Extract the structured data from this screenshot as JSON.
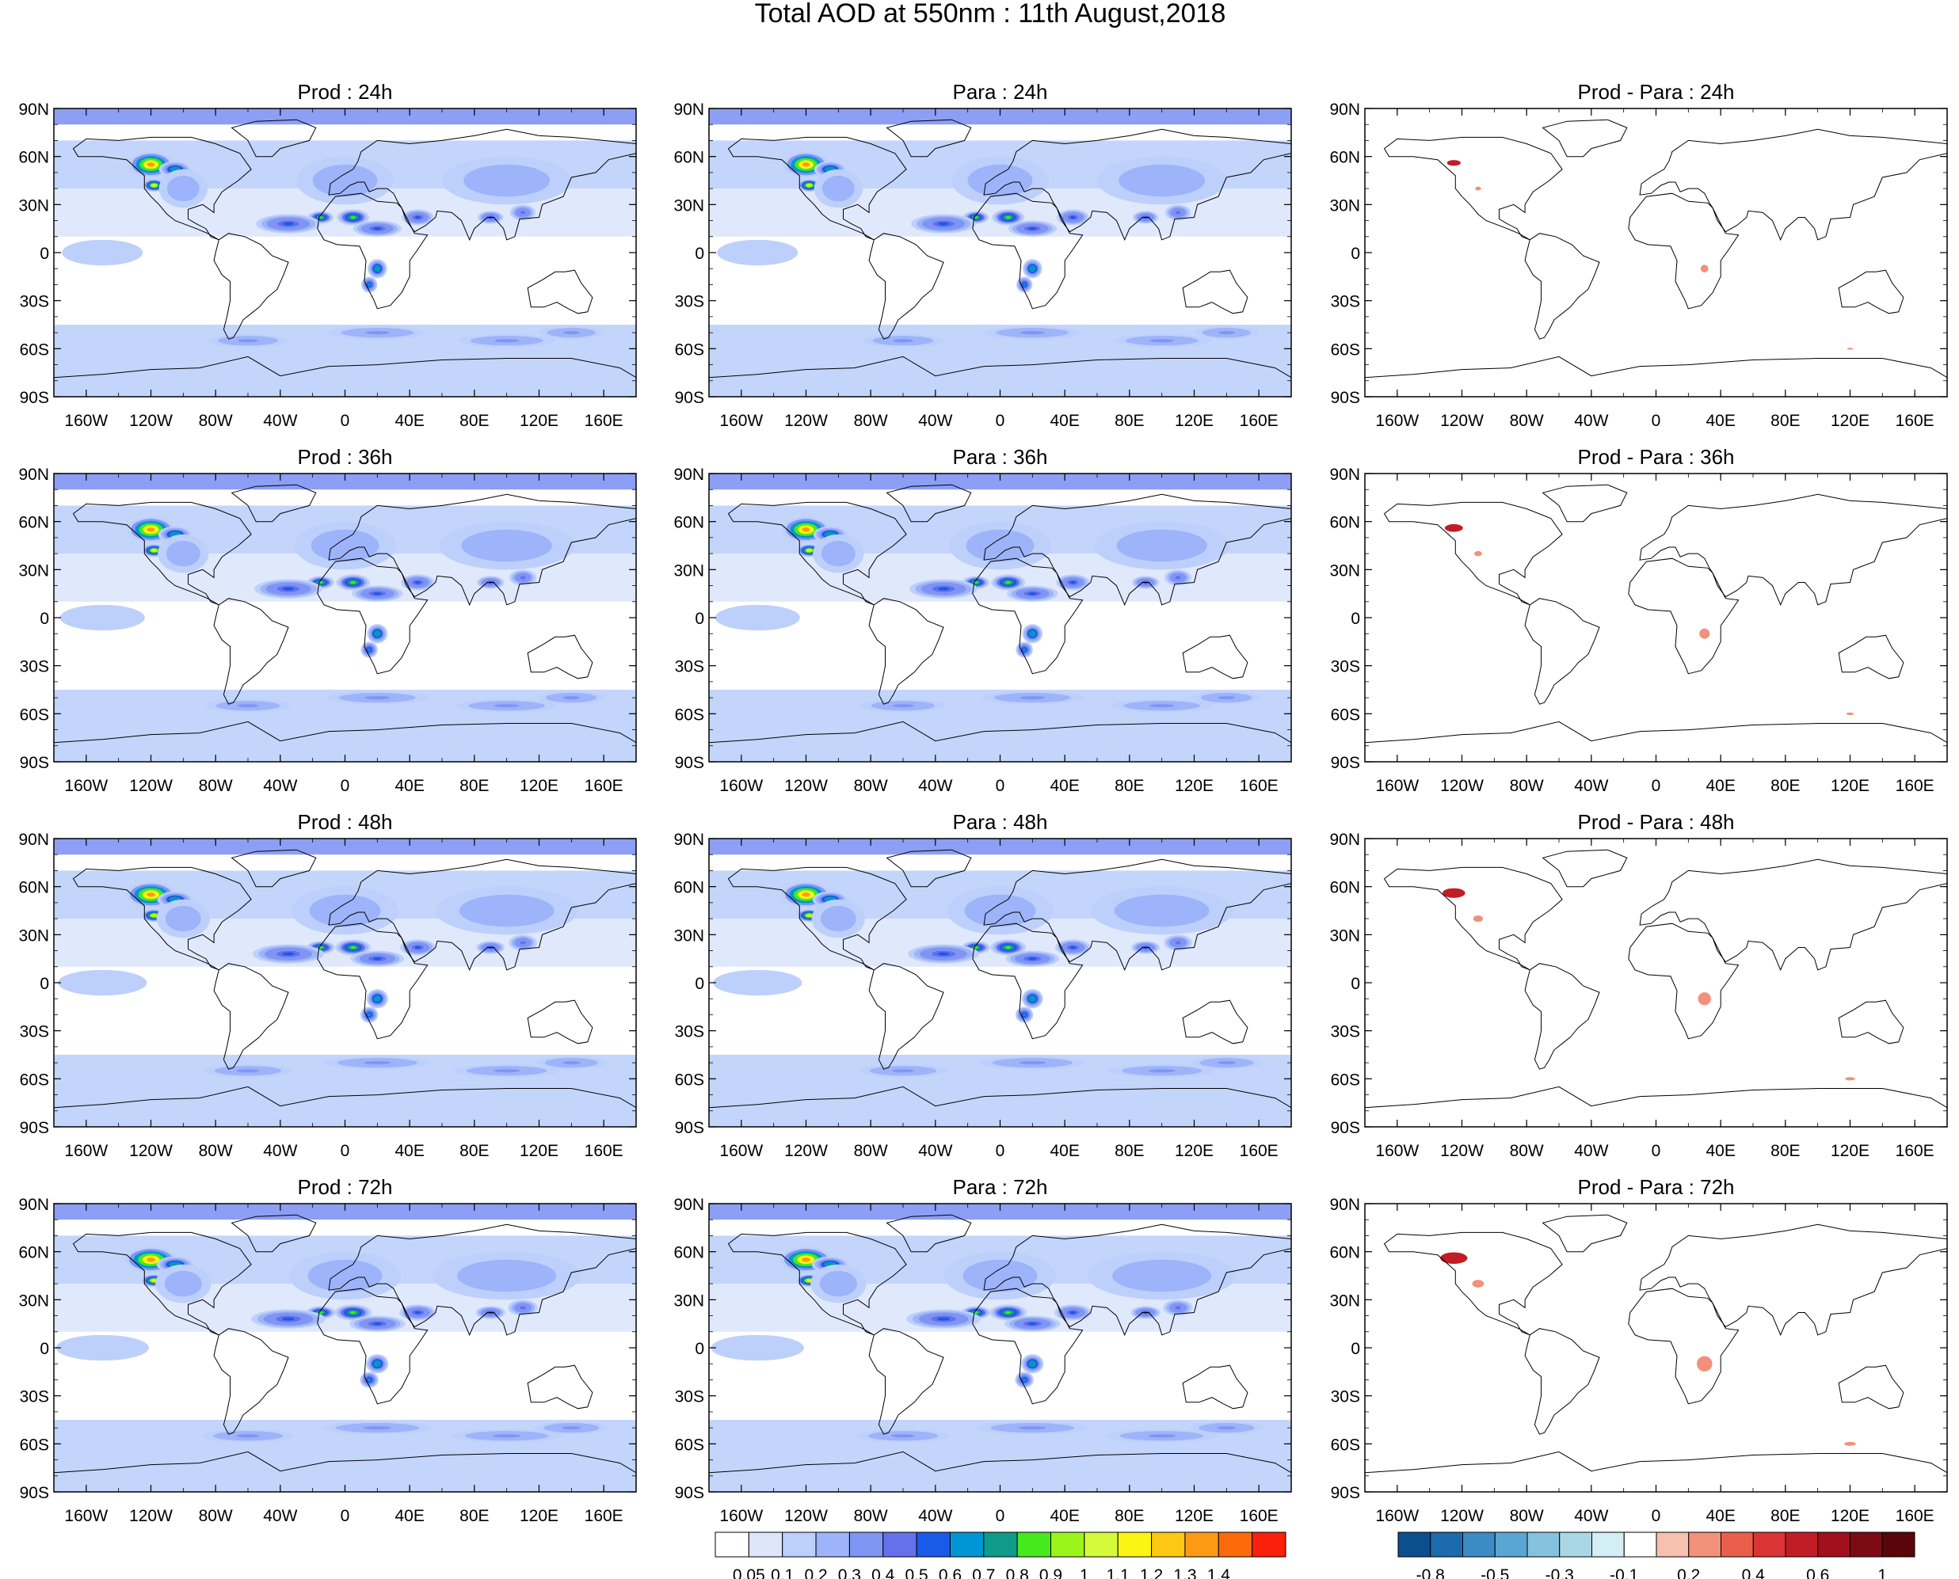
{
  "figure": {
    "title": "Total AOD at 550nm : 11th August,2018"
  },
  "panel_rows": [
    {
      "titles": [
        "Prod : 24h",
        "Para : 24h",
        "Prod - Para : 24h"
      ]
    },
    {
      "titles": [
        "Prod : 36h",
        "Para : 36h",
        "Prod - Para : 36h"
      ]
    },
    {
      "titles": [
        "Prod : 48h",
        "Para : 48h",
        "Prod - Para : 48h"
      ]
    },
    {
      "titles": [
        "Prod : 72h",
        "Para : 72h",
        "Prod - Para : 72h"
      ]
    }
  ],
  "axes": {
    "lat_ticks": [
      "90N",
      "60N",
      "30N",
      "0",
      "30S",
      "60S",
      "90S"
    ],
    "lon_ticks": [
      "160W",
      "120W",
      "80W",
      "40W",
      "0",
      "40E",
      "80E",
      "120E",
      "160E"
    ],
    "lat_range": [
      -90,
      90
    ],
    "lon_range": [
      -180,
      180
    ]
  },
  "colorbars": {
    "aod": {
      "labels": [
        "0.05",
        "0.1",
        "0.2",
        "0.3",
        "0.4",
        "0.5",
        "0.6",
        "0.7",
        "0.8",
        "0.9",
        "1",
        "1.1",
        "1.2",
        "1.3",
        "1.4"
      ],
      "colors": [
        "#ffffff",
        "#dde6fb",
        "#bdd0fb",
        "#9db3fa",
        "#7f95f4",
        "#6470ec",
        "#1a5ae8",
        "#0096d6",
        "#0f9b8a",
        "#46e81e",
        "#9cf51a",
        "#d4fa3a",
        "#fcf514",
        "#fcc814",
        "#fc9a14",
        "#fc6a0a",
        "#fa200a"
      ]
    },
    "diff": {
      "labels": [
        "-0.8",
        "-0.5",
        "-0.3",
        "-0.1",
        "0.2",
        "0.4",
        "0.6",
        "1"
      ],
      "colors": [
        "#0b4f8e",
        "#1d6aae",
        "#3b8bc5",
        "#5aa6d3",
        "#84c2df",
        "#aad7e6",
        "#d4eef5",
        "#ffffff",
        "#f7c1b0",
        "#f2907c",
        "#ea5f4c",
        "#db3434",
        "#c11d27",
        "#a10f1c",
        "#7d0b13",
        "#5a0509"
      ]
    }
  },
  "map_style": {
    "ocean_background": "#ffffff",
    "aod_base": "#dde6fb",
    "aod_mid": "#bdd0fb",
    "coast_color": "#000000"
  }
}
